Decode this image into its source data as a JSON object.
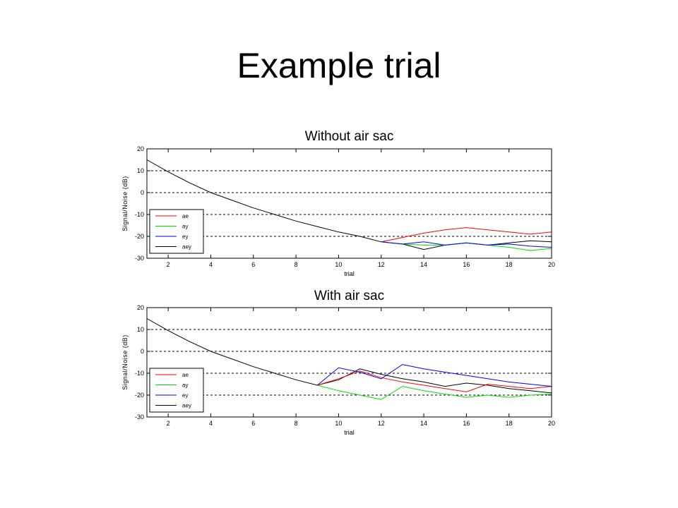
{
  "slide": {
    "title": "Example trial"
  },
  "chart_data": [
    {
      "type": "line",
      "title": "Without air sac",
      "xlabel": "trial",
      "ylabel": "Signal/Noise (dB)",
      "xlim": [
        1,
        20
      ],
      "ylim": [
        -30,
        20
      ],
      "xticks": [
        2,
        4,
        6,
        8,
        10,
        12,
        14,
        16,
        18,
        20
      ],
      "yticks": [
        20,
        10,
        0,
        -10,
        -20,
        -30
      ],
      "grid": "horizontal-dashed",
      "legend_position": "lower-left",
      "series": [
        {
          "name": "aey",
          "color": "#000000",
          "x": [
            1,
            2,
            3,
            4,
            5,
            6,
            7,
            8,
            9,
            10,
            11,
            12,
            13,
            14,
            15,
            16,
            17,
            18,
            19,
            20
          ],
          "y": [
            15,
            9.5,
            4.5,
            0,
            -3.5,
            -7,
            -10,
            -13,
            -15.5,
            -18,
            -20,
            -22.5,
            -23.5,
            -26,
            -24,
            -23,
            -24,
            -23,
            -22,
            -22.5
          ]
        },
        {
          "name": "ae",
          "color": "#ff0000",
          "x": [
            12,
            13,
            14,
            15,
            16,
            17,
            18,
            19,
            20
          ],
          "y": [
            -22.5,
            -20.5,
            -18.5,
            -17,
            -16,
            -17,
            -18,
            -19,
            -18
          ]
        },
        {
          "name": "ay",
          "color": "#00dd00",
          "x": [
            12,
            13,
            14,
            15,
            16,
            17,
            18,
            19,
            20
          ],
          "y": [
            -22.5,
            -23.5,
            -24,
            -24,
            -23,
            -24,
            -25,
            -26.5,
            -25.5
          ]
        },
        {
          "name": "ey",
          "color": "#0000ff",
          "x": [
            12,
            13,
            14,
            15,
            16,
            17,
            18,
            19,
            20
          ],
          "y": [
            -22.5,
            -23.5,
            -22.5,
            -24,
            -23,
            -24,
            -23.5,
            -24.5,
            -25
          ]
        }
      ]
    },
    {
      "type": "line",
      "title": "With air sac",
      "xlabel": "trial",
      "ylabel": "Signal/Noise (dB)",
      "xlim": [
        1,
        20
      ],
      "ylim": [
        -30,
        20
      ],
      "xticks": [
        2,
        4,
        6,
        8,
        10,
        12,
        14,
        16,
        18,
        20
      ],
      "yticks": [
        20,
        10,
        0,
        -10,
        -20,
        -30
      ],
      "grid": "horizontal-dashed",
      "legend_position": "lower-left",
      "series": [
        {
          "name": "aey",
          "color": "#000000",
          "x": [
            1,
            2,
            3,
            4,
            5,
            6,
            7,
            8,
            9,
            10,
            11,
            12,
            13,
            14,
            15,
            16,
            17,
            18,
            19,
            20
          ],
          "y": [
            15,
            9.5,
            4.5,
            0,
            -3.5,
            -7,
            -10,
            -13,
            -15.5,
            -13,
            -8,
            -10.5,
            -12.5,
            -14,
            -16,
            -14.5,
            -15.5,
            -17,
            -18,
            -19
          ]
        },
        {
          "name": "ae",
          "color": "#ff0000",
          "x": [
            9,
            10,
            11,
            12,
            13,
            14,
            15,
            16,
            17,
            18,
            19,
            20
          ],
          "y": [
            -15.5,
            -12.5,
            -9,
            -12,
            -14,
            -15.5,
            -17,
            -18.5,
            -15,
            -16,
            -17,
            -16
          ]
        },
        {
          "name": "ay",
          "color": "#00dd00",
          "x": [
            9,
            10,
            11,
            12,
            13,
            14,
            15,
            16,
            17,
            18,
            19,
            20
          ],
          "y": [
            -15.5,
            -18,
            -20,
            -22,
            -16,
            -18,
            -19.5,
            -21,
            -20,
            -21,
            -20,
            -19.5
          ]
        },
        {
          "name": "ey",
          "color": "#0000ff",
          "x": [
            9,
            10,
            11,
            12,
            13,
            14,
            15,
            16,
            17,
            18,
            19,
            20
          ],
          "y": [
            -15.5,
            -7.5,
            -9.5,
            -12.5,
            -6,
            -8,
            -9.5,
            -11,
            -12.5,
            -14,
            -15,
            -16
          ]
        }
      ]
    }
  ]
}
